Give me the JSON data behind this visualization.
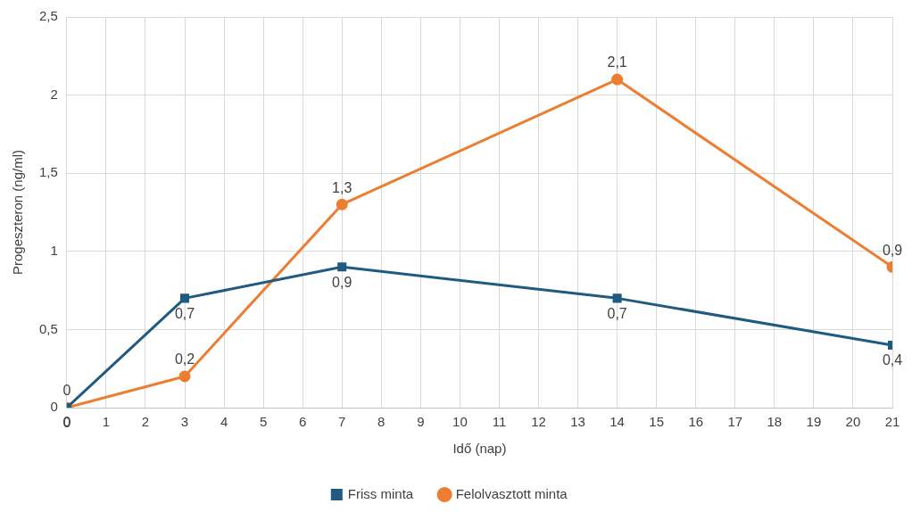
{
  "chart_data": {
    "type": "line",
    "xlabel": "Idő (nap)",
    "ylabel": "Progeszteron (ng/ml)",
    "x": [
      0,
      3,
      7,
      14,
      21
    ],
    "series": [
      {
        "name": "Friss minta",
        "color": "#1f5b80",
        "marker": "square",
        "values": [
          0,
          0.7,
          0.9,
          0.7,
          0.4
        ],
        "value_labels": [
          "0",
          "0,7",
          "0,9",
          "0,7",
          "0,4"
        ]
      },
      {
        "name": "Felolvasztott minta",
        "color": "#ed7d31",
        "marker": "circle",
        "values": [
          0,
          0.2,
          1.3,
          2.1,
          0.9
        ],
        "value_labels": [
          "0",
          "0,2",
          "1,3",
          "2,1",
          "0,9"
        ]
      }
    ],
    "xlim": [
      0,
      21
    ],
    "xticks": [
      0,
      1,
      2,
      3,
      4,
      5,
      6,
      7,
      8,
      9,
      10,
      11,
      12,
      13,
      14,
      15,
      16,
      17,
      18,
      19,
      20,
      21
    ],
    "ylim": [
      0,
      2.5
    ],
    "yticks": [
      0,
      {
        "value": 0.5,
        "label": "0,5"
      },
      1,
      {
        "value": 1.5,
        "label": "1,5"
      },
      2,
      {
        "value": 2.5,
        "label": "2,5"
      }
    ],
    "grid": true,
    "legend": "bottom",
    "line_style": "solid"
  }
}
